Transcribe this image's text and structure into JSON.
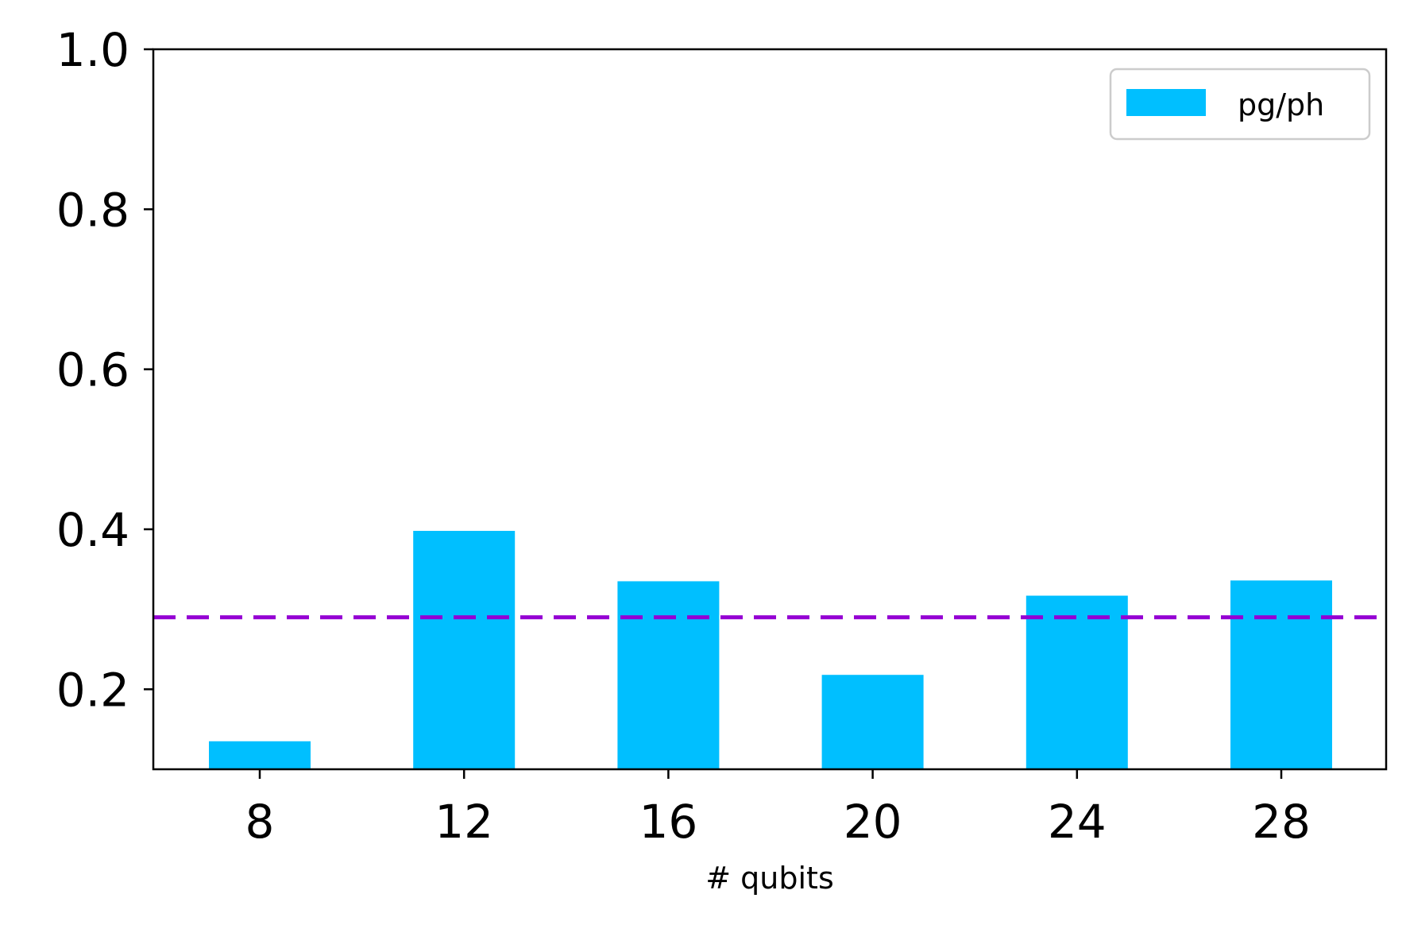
{
  "chart_data": {
    "type": "bar",
    "categories": [
      "8",
      "12",
      "16",
      "20",
      "24",
      "28"
    ],
    "series": [
      {
        "name": "pg/ph",
        "values": [
          0.135,
          0.398,
          0.335,
          0.218,
          0.317,
          0.336
        ]
      }
    ],
    "reference_line": {
      "value": 0.29,
      "style": "dashed",
      "color": "#9400D3"
    },
    "xlabel": "# qubits",
    "ylabel": "",
    "ylim": [
      0.1,
      1.0
    ],
    "yticks": [
      0.2,
      0.4,
      0.6,
      0.8,
      1.0
    ],
    "ytick_labels": [
      "0.2",
      "0.4",
      "0.6",
      "0.8",
      "1.0"
    ],
    "bar_color": "#00BFFF",
    "grid": false,
    "legend_position": "top-right"
  }
}
